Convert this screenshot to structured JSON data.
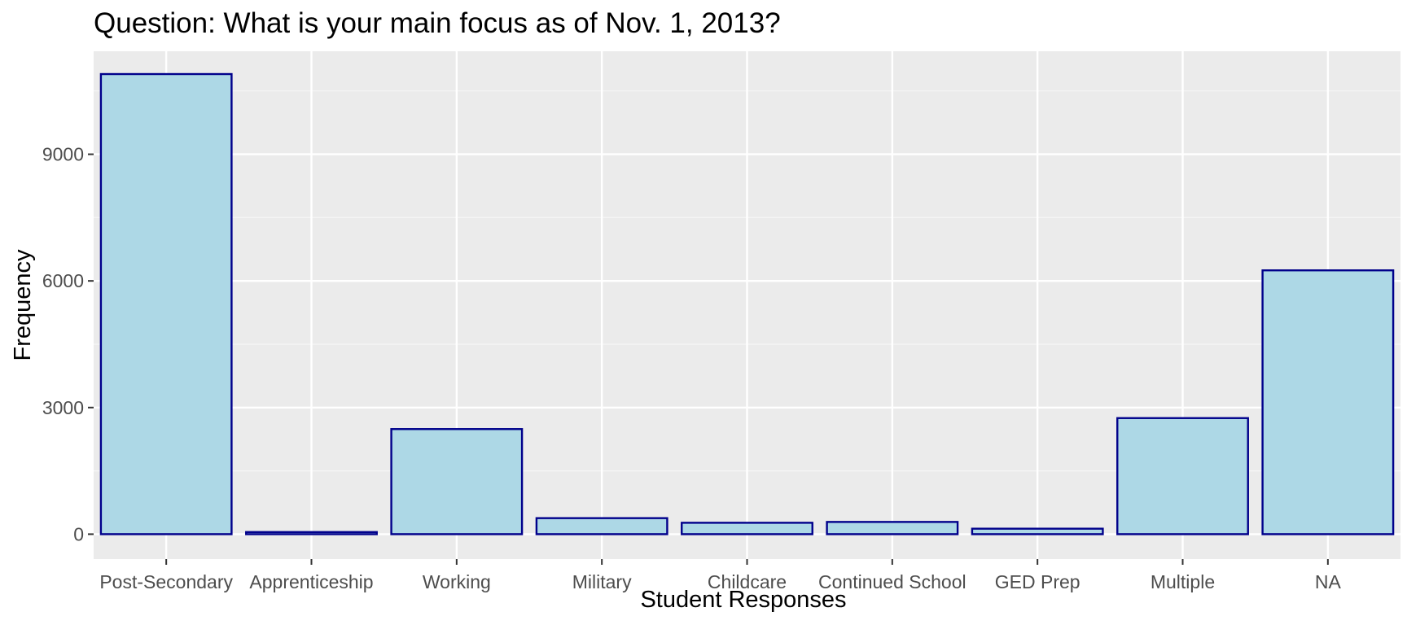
{
  "chart_data": {
    "type": "bar",
    "title": "Question: What is your main focus as of Nov. 1, 2013?",
    "xlabel": "Student Responses",
    "ylabel": "Frequency",
    "categories": [
      "Post-Secondary",
      "Apprenticeship",
      "Working",
      "Military",
      "Childcare",
      "Continued School",
      "GED Prep",
      "Multiple",
      "NA"
    ],
    "values": [
      10900,
      50,
      2490,
      380,
      270,
      290,
      130,
      2750,
      6250
    ],
    "yticks": [
      0,
      3000,
      6000,
      9000
    ],
    "ylim": [
      -590,
      11440
    ],
    "grid": true,
    "legend": "none",
    "colors": {
      "bar_fill": "#add8e6",
      "bar_stroke": "#00008b",
      "panel_background": "#ebebeb",
      "grid_major": "#ffffff",
      "grid_minor": "#f5f5f5",
      "tick_mark": "#333333"
    }
  }
}
